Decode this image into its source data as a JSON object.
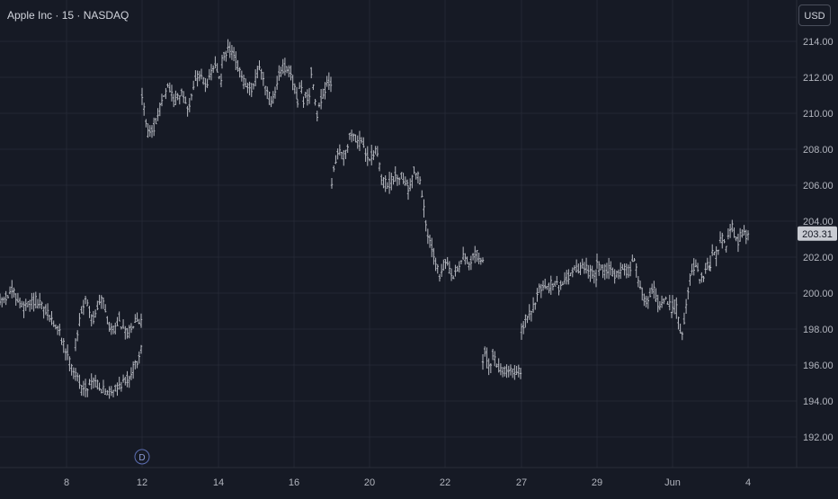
{
  "header": {
    "symbol_title": "Apple Inc · 15 · NASDAQ",
    "currency_label": "USD"
  },
  "markers": {
    "day_marker_label": "D"
  },
  "colors": {
    "background": "#161a25",
    "bar": "#b7bac2",
    "grid": "#232733",
    "axis_text": "#b2b5be",
    "price_label_bg": "#c9ccd3",
    "price_label_text": "#131722"
  },
  "chart_data": {
    "type": "ohlc",
    "title": "Apple Inc · 15 · NASDAQ",
    "currency": "USD",
    "ylim": [
      190.3,
      216.3
    ],
    "y_ticks": [
      192,
      194,
      196,
      198,
      200,
      202,
      204,
      206,
      208,
      210,
      212,
      214
    ],
    "y_tick_labels": [
      "192.00",
      "194.00",
      "196.00",
      "198.00",
      "200.00",
      "202.00",
      "204.00",
      "206.00",
      "208.00",
      "210.00",
      "212.00",
      "214.00"
    ],
    "x_ticks": [
      {
        "label": "8",
        "session": 1
      },
      {
        "label": "12",
        "session": 3
      },
      {
        "label": "14",
        "session": 5
      },
      {
        "label": "16",
        "session": 7
      },
      {
        "label": "20",
        "session": 9
      },
      {
        "label": "22",
        "session": 11
      },
      {
        "label": "27",
        "session": 13
      },
      {
        "label": "29",
        "session": 15
      },
      {
        "label": "Jun",
        "session": 17
      },
      {
        "label": "4",
        "session": 19
      }
    ],
    "last_price": 203.31,
    "last_price_label": "203.31",
    "grid": true,
    "series": [
      {
        "session": 0,
        "points": [
          199.5,
          200.1,
          199.2,
          199.6,
          198.9,
          197.9,
          196.1,
          194.6,
          195.2,
          194.4,
          194.8,
          195.3,
          196.8
        ]
      },
      {
        "session": 1,
        "points": [
          197.2,
          198.9,
          199.7,
          198.4,
          199.1,
          199.8,
          198.3,
          197.9,
          198.6,
          197.7,
          197.9,
          198.7,
          198.4
        ]
      },
      {
        "session": 2,
        "points": [
          211.0,
          208.7,
          209.4,
          210.7,
          211.4,
          210.6,
          211.1,
          210.2,
          211.9,
          212.1,
          211.6,
          212.7,
          211.8
        ]
      },
      {
        "session": 3,
        "points": [
          212.9,
          213.6,
          213.1,
          212.1,
          211.3,
          211.5,
          212.6,
          211.6,
          210.4,
          212.0,
          212.6,
          212.2,
          211.0
        ]
      },
      {
        "session": 4,
        "points": [
          210.7,
          211.8,
          210.4,
          211.2,
          210.6,
          212.4,
          211.2,
          209.9,
          210.5,
          210.9,
          211.1,
          211.9,
          211.5
        ]
      },
      {
        "session": 5,
        "points": [
          206.1,
          208.1,
          207.6,
          208.9,
          208.6,
          208.1,
          207.6,
          208.0,
          206.2,
          206.0,
          206.5,
          206.6,
          206.1
        ]
      },
      {
        "session": 6,
        "points": [
          205.6,
          206.9,
          206.1,
          203.3,
          202.4,
          200.9,
          201.8,
          200.8,
          201.4,
          202.1,
          201.6,
          202.4,
          201.6
        ]
      },
      {
        "session": 7,
        "points": [
          196.4,
          196.8,
          195.6,
          196.6,
          196.3,
          195.9,
          195.8,
          195.6,
          195.9,
          195.7,
          195.5,
          195.6,
          195.6
        ]
      },
      {
        "session": 8,
        "points": [
          198.0,
          198.8,
          199.3,
          200.4,
          200.1,
          200.6,
          200.3,
          200.8,
          201.1,
          201.3,
          201.4,
          201.2,
          200.9
        ]
      },
      {
        "session": 9,
        "points": [
          201.6,
          201.2,
          201.4,
          201.0,
          201.3,
          201.2,
          201.9,
          200.2,
          199.5,
          200.4,
          199.2,
          199.6,
          199.1
        ]
      },
      {
        "session": 10,
        "points": [
          199.3,
          199.4,
          198.3,
          197.8,
          198.6,
          200.1,
          201.3,
          201.4,
          201.7,
          200.7,
          200.9,
          201.6,
          201.4
        ]
      },
      {
        "session": 11,
        "points": [
          201.6,
          202.5,
          202.1,
          202.9,
          203.1,
          202.3,
          203.3,
          203.7,
          203.1,
          202.9,
          203.4,
          203.2,
          203.31
        ]
      }
    ]
  }
}
